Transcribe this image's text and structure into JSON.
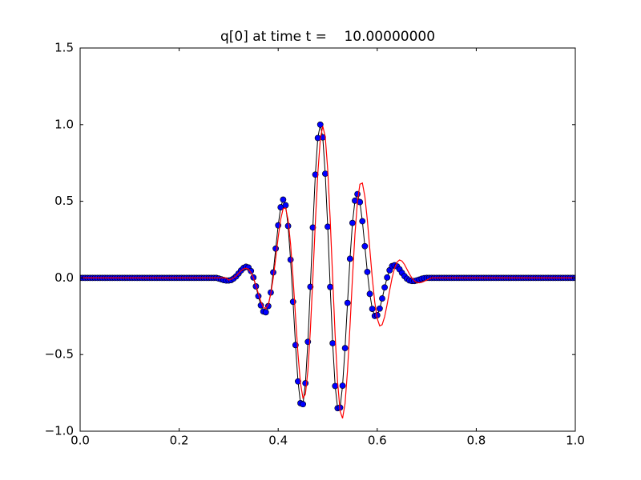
{
  "chart_data": {
    "type": "line_scatter",
    "title": "q[0] at time t =    10.00000000",
    "x": [
      0,
      0.005,
      0.01,
      0.015,
      0.02,
      0.025,
      0.03,
      0.035,
      0.04,
      0.045,
      0.05,
      0.055,
      0.06,
      0.065,
      0.07,
      0.075,
      0.08,
      0.085,
      0.09,
      0.095,
      0.1,
      0.105,
      0.11,
      0.115,
      0.12,
      0.125,
      0.13,
      0.135,
      0.14,
      0.145,
      0.15,
      0.155,
      0.16,
      0.165,
      0.17,
      0.175,
      0.18,
      0.185,
      0.19,
      0.195,
      0.2,
      0.205,
      0.21,
      0.215,
      0.22,
      0.225,
      0.23,
      0.235,
      0.24,
      0.245,
      0.25,
      0.255,
      0.26,
      0.265,
      0.27,
      0.275,
      0.28,
      0.285,
      0.29,
      0.295,
      0.3,
      0.305,
      0.31,
      0.315,
      0.32,
      0.325,
      0.33,
      0.335,
      0.34,
      0.345,
      0.35,
      0.355,
      0.36,
      0.365,
      0.37,
      0.375,
      0.38,
      0.385,
      0.39,
      0.395,
      0.4,
      0.405,
      0.41,
      0.415,
      0.42,
      0.425,
      0.43,
      0.435,
      0.44,
      0.445,
      0.45,
      0.455,
      0.46,
      0.465,
      0.47,
      0.475,
      0.48,
      0.485,
      0.49,
      0.495,
      0.5,
      0.505,
      0.51,
      0.515,
      0.52,
      0.525,
      0.53,
      0.535,
      0.54,
      0.545,
      0.55,
      0.555,
      0.56,
      0.565,
      0.57,
      0.575,
      0.58,
      0.585,
      0.59,
      0.595,
      0.6,
      0.605,
      0.61,
      0.615,
      0.62,
      0.625,
      0.63,
      0.635,
      0.64,
      0.645,
      0.65,
      0.655,
      0.66,
      0.665,
      0.67,
      0.675,
      0.68,
      0.685,
      0.69,
      0.695,
      0.7,
      0.705,
      0.71,
      0.715,
      0.72,
      0.725,
      0.73,
      0.735,
      0.74,
      0.745,
      0.75,
      0.755,
      0.76,
      0.765,
      0.77,
      0.775,
      0.78,
      0.785,
      0.79,
      0.795,
      0.8,
      0.805,
      0.81,
      0.815,
      0.82,
      0.825,
      0.83,
      0.835,
      0.84,
      0.845,
      0.85,
      0.855,
      0.86,
      0.865,
      0.87,
      0.875,
      0.88,
      0.885,
      0.89,
      0.895,
      0.9,
      0.905,
      0.91,
      0.915,
      0.92,
      0.925,
      0.93,
      0.935,
      0.94,
      0.945,
      0.95,
      0.955,
      0.96,
      0.965,
      0.97,
      0.975,
      0.98,
      0.985,
      0.99,
      0.995,
      1
    ],
    "series": [
      {
        "style": "markers",
        "color": "#0000ff",
        "marker_edge_color": "#000000",
        "values": [
          0,
          0,
          0,
          0,
          0,
          0,
          0,
          0,
          0,
          0,
          0,
          0,
          0,
          0,
          0,
          0,
          0,
          0,
          0,
          0,
          0,
          0,
          0,
          0,
          0,
          0,
          0,
          0,
          0,
          0,
          0,
          0,
          0,
          0,
          0,
          0,
          0,
          0,
          0,
          0,
          0,
          0,
          0,
          0,
          0,
          0,
          0,
          0,
          0,
          0,
          0,
          0,
          0,
          0,
          0,
          0,
          -0.004,
          -0.009,
          -0.014,
          -0.017,
          -0.017,
          -0.014,
          -0.004,
          0.01,
          0.029,
          0.049,
          0.065,
          0.073,
          0.068,
          0.045,
          0.003,
          -0.055,
          -0.119,
          -0.179,
          -0.219,
          -0.224,
          -0.184,
          -0.095,
          0.036,
          0.191,
          0.343,
          0.461,
          0.511,
          0.474,
          0.339,
          0.119,
          -0.156,
          -0.438,
          -0.675,
          -0.817,
          -0.824,
          -0.687,
          -0.417,
          -0.058,
          0.329,
          0.674,
          0.913,
          1.0,
          0.917,
          0.68,
          0.334,
          -0.059,
          -0.426,
          -0.705,
          -0.85,
          -0.846,
          -0.703,
          -0.458,
          -0.163,
          0.125,
          0.359,
          0.504,
          0.547,
          0.495,
          0.37,
          0.207,
          0.039,
          -0.104,
          -0.202,
          -0.248,
          -0.243,
          -0.2,
          -0.134,
          -0.062,
          0.003,
          0.05,
          0.077,
          0.083,
          0.075,
          0.056,
          0.033,
          0.012,
          -0.005,
          -0.016,
          -0.02,
          -0.02,
          -0.016,
          -0.011,
          -0.005,
          -0.001,
          0,
          0,
          0,
          0,
          0,
          0,
          0,
          0,
          0,
          0,
          0,
          0,
          0,
          0,
          0,
          0,
          0,
          0,
          0,
          0,
          0,
          0,
          0,
          0,
          0,
          0,
          0,
          0,
          0,
          0,
          0,
          0,
          0,
          0,
          0,
          0,
          0,
          0,
          0,
          0,
          0,
          0,
          0,
          0,
          0,
          0,
          0,
          0,
          0,
          0,
          0,
          0,
          0,
          0,
          0,
          0,
          0,
          0,
          0,
          0,
          0
        ]
      },
      {
        "style": "line",
        "color": "#ff0000",
        "values": [
          0,
          0,
          0,
          0,
          0,
          0,
          0,
          0,
          0,
          0,
          0,
          0,
          0,
          0,
          0,
          0,
          0,
          0,
          0,
          0,
          0,
          0,
          0,
          0,
          0,
          0,
          0,
          0,
          0,
          0,
          0,
          0,
          0,
          0,
          0,
          0,
          0,
          0,
          0,
          0,
          0,
          0,
          0,
          0,
          0,
          0,
          0,
          0,
          0,
          0,
          0,
          0,
          0,
          0,
          0,
          0,
          0,
          0,
          0,
          0,
          -0.014,
          -0.009,
          0,
          0.013,
          0.03,
          0.046,
          0.059,
          0.064,
          0.057,
          0.036,
          0,
          -0.049,
          -0.103,
          -0.154,
          -0.191,
          -0.2,
          -0.173,
          -0.105,
          0,
          0.13,
          0.265,
          0.382,
          0.452,
          0.456,
          0.378,
          0.221,
          0,
          -0.253,
          -0.497,
          -0.687,
          -0.783,
          -0.758,
          -0.604,
          -0.34,
          0,
          0.36,
          0.68,
          0.904,
          0.99,
          0.922,
          0.707,
          0.382,
          0,
          -0.375,
          -0.68,
          -0.869,
          -0.916,
          -0.82,
          -0.604,
          -0.314,
          0,
          0.285,
          0.497,
          0.611,
          0.619,
          0.532,
          0.378,
          0.189,
          0,
          -0.158,
          -0.265,
          -0.313,
          -0.305,
          -0.253,
          -0.173,
          -0.083,
          0,
          0.064,
          0.103,
          0.117,
          0.11,
          0.088,
          0.057,
          0.026,
          0,
          -0.019,
          -0.03,
          -0.032,
          -0.029,
          -0.022,
          -0.014,
          -0.006,
          0,
          0,
          0,
          0,
          0,
          0,
          0,
          0,
          0,
          0,
          0,
          0,
          0,
          0,
          0,
          0,
          0,
          0,
          0,
          0,
          0,
          0,
          0,
          0,
          0,
          0,
          0,
          0,
          0,
          0,
          0,
          0,
          0,
          0,
          0,
          0,
          0,
          0,
          0,
          0,
          0,
          0,
          0,
          0,
          0,
          0,
          0,
          0,
          0,
          0,
          0,
          0,
          0,
          0,
          0,
          0,
          0,
          0,
          0
        ]
      }
    ],
    "xlim": [
      0,
      1
    ],
    "ylim": [
      -1,
      1.5
    ],
    "xticks": [
      {
        "value": 0,
        "label": "0.0"
      },
      0.2,
      0.4,
      0.6,
      0.8,
      {
        "value": 1,
        "label": "1.0"
      }
    ],
    "yticks": [
      {
        "value": -1,
        "label": "−1.0"
      },
      {
        "value": -0.5,
        "label": "−0.5"
      },
      {
        "value": 0,
        "label": "0.0"
      },
      0.5,
      {
        "value": 1,
        "label": "1.0"
      },
      1.5
    ],
    "grid": false
  }
}
